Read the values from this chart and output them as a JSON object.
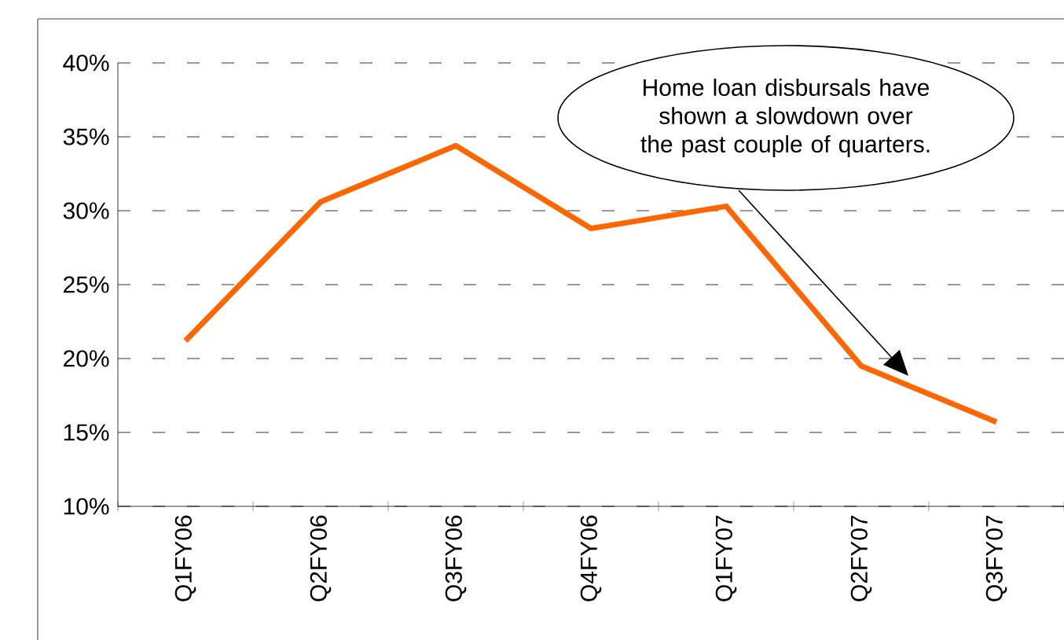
{
  "chart_data": {
    "type": "line",
    "categories": [
      "Q1FY06",
      "Q2FY06",
      "Q3FY06",
      "Q4FY06",
      "Q1FY07",
      "Q2FY07",
      "Q3FY07"
    ],
    "values": [
      21.2,
      30.6,
      34.4,
      28.8,
      30.3,
      19.5,
      15.7
    ],
    "color": "#ff6600",
    "ylim": [
      10,
      40
    ],
    "yticks": [
      {
        "value": 10,
        "label": "10%"
      },
      {
        "value": 15,
        "label": "15%"
      },
      {
        "value": 20,
        "label": "20%"
      },
      {
        "value": 25,
        "label": "25%"
      },
      {
        "value": 30,
        "label": "30%"
      },
      {
        "value": 35,
        "label": "35%"
      },
      {
        "value": 40,
        "label": "40%"
      }
    ],
    "grid": "y",
    "annotations": [
      "Home loan disbursals have shown a slowdown over the past couple of quarters."
    ]
  }
}
